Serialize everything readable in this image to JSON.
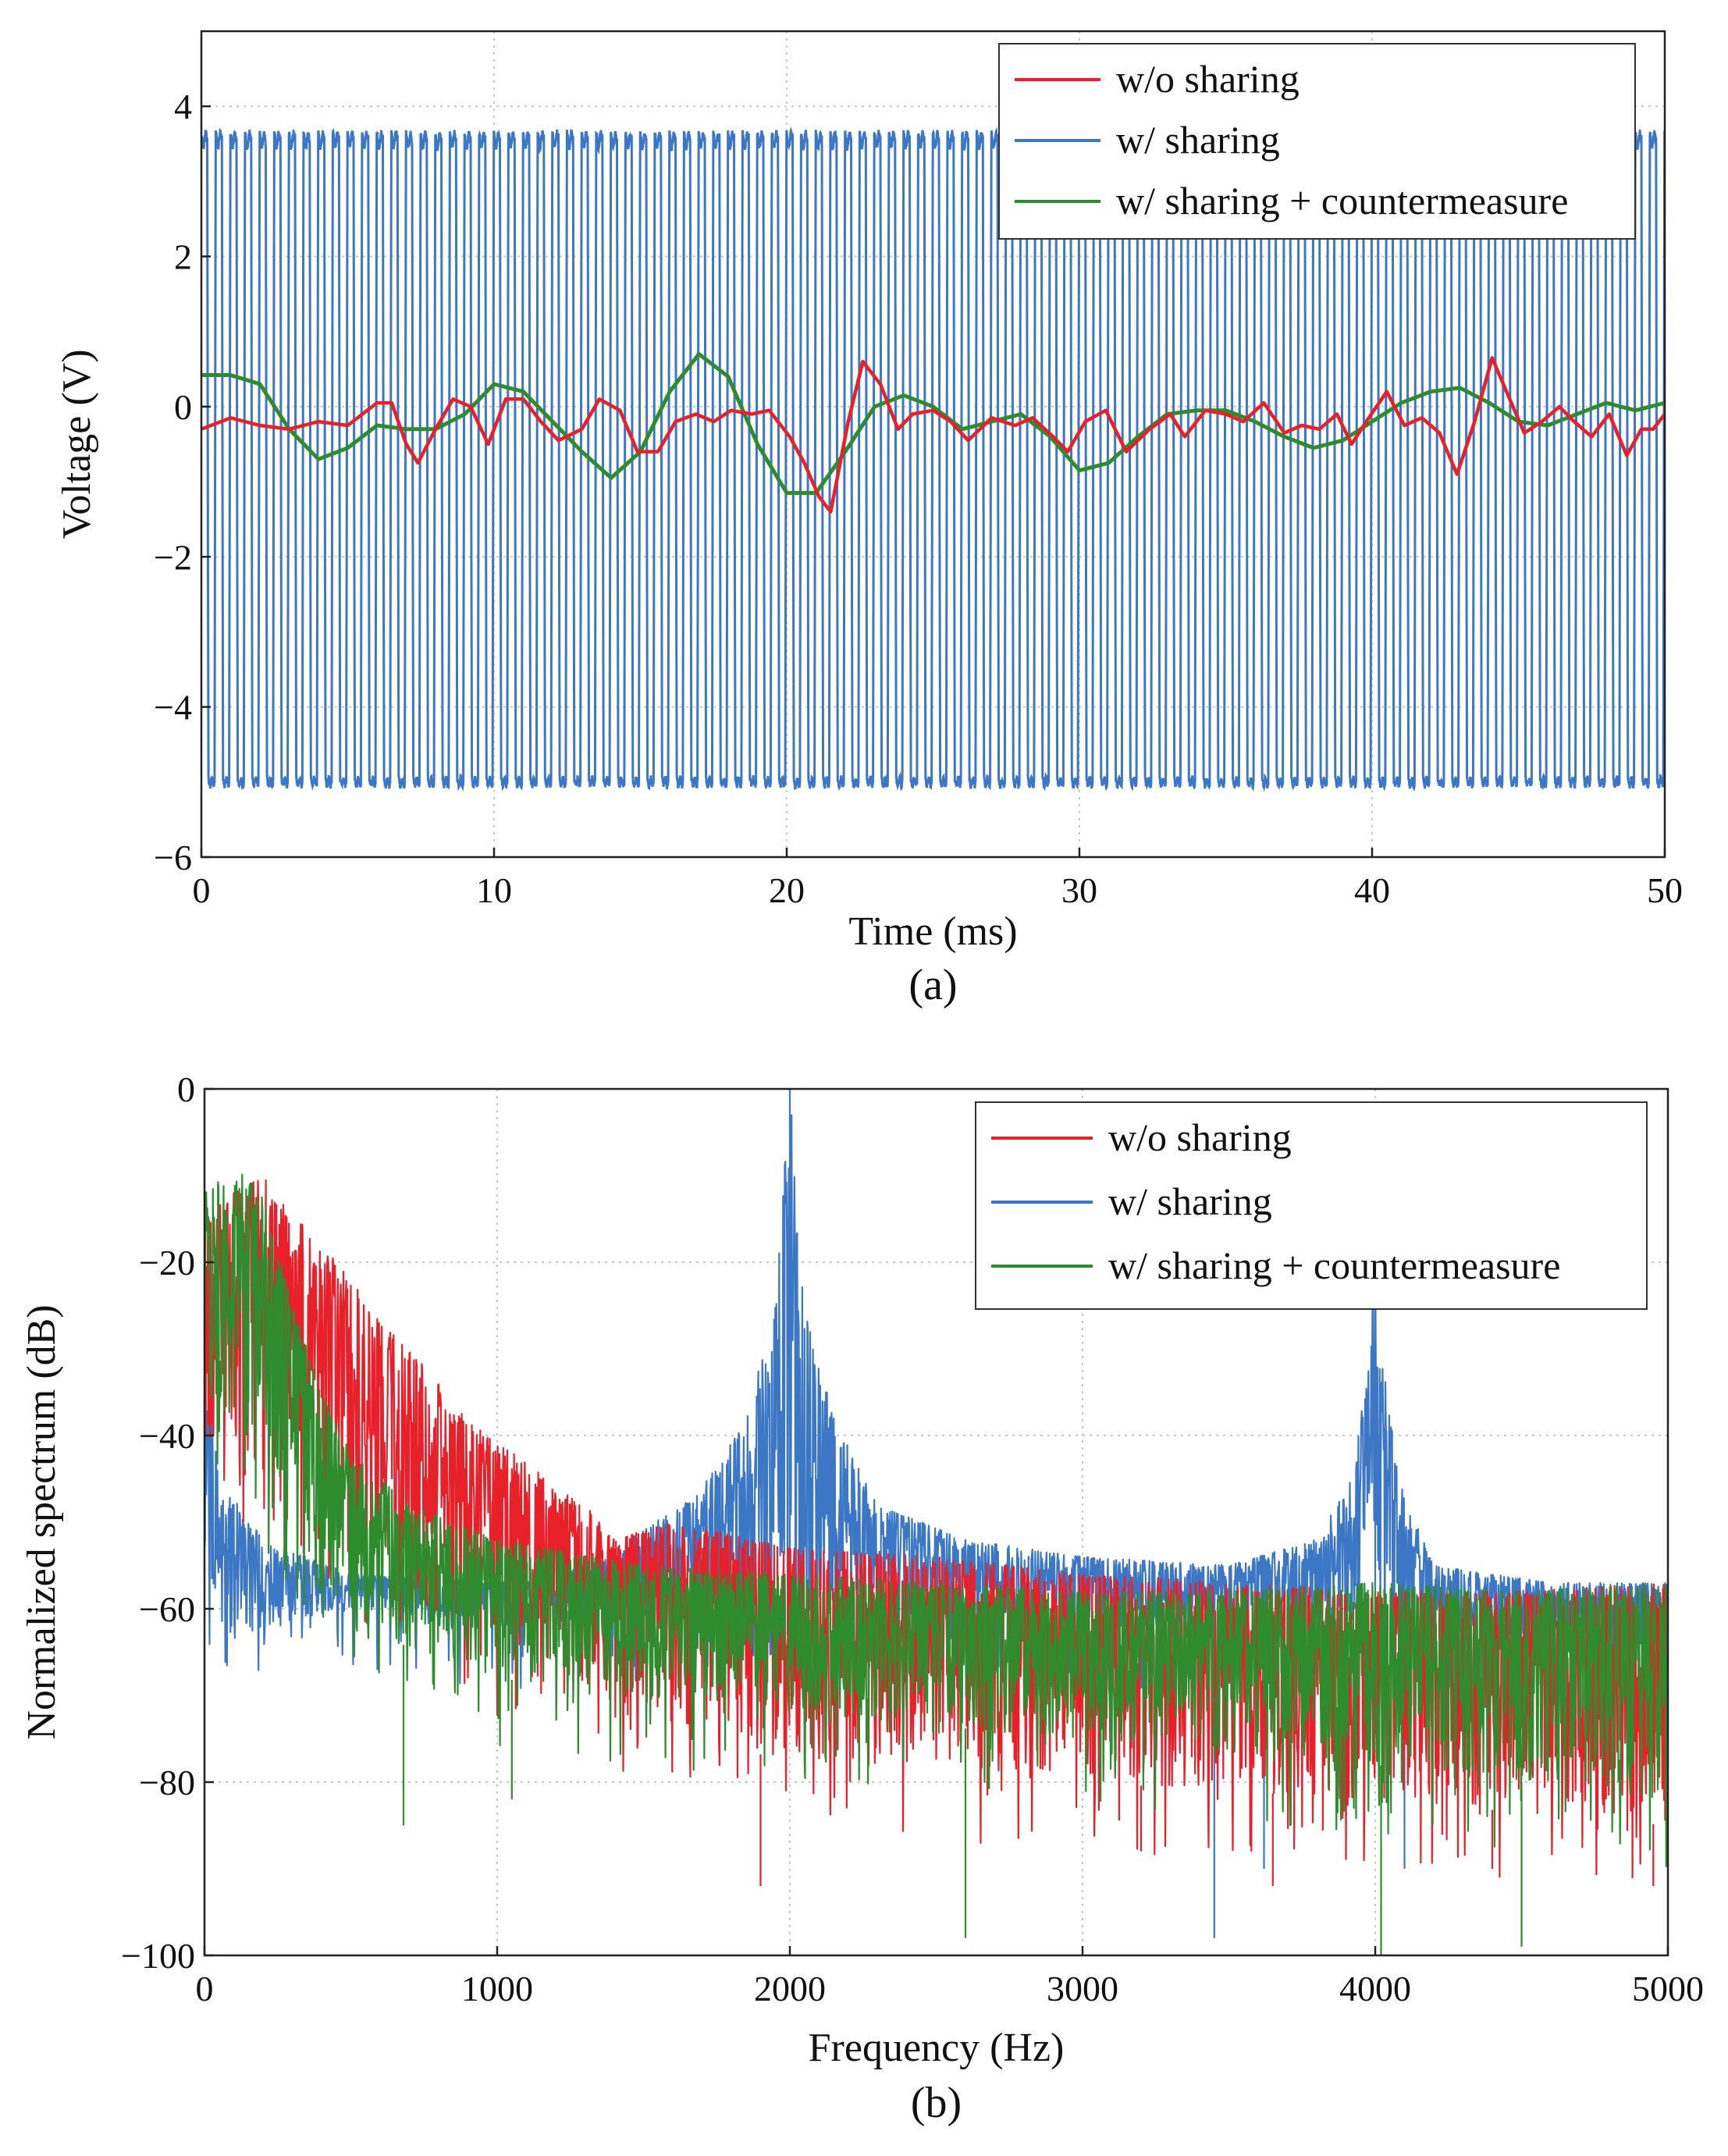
{
  "chart_data": [
    {
      "id": "a",
      "type": "line",
      "caption": "(a)",
      "xlabel": "Time (ms)",
      "ylabel": "Voltage (V)",
      "xlim": [
        0,
        50
      ],
      "ylim": [
        -6,
        5
      ],
      "xticks": [
        0,
        10,
        20,
        30,
        40,
        50
      ],
      "xtick_labels": [
        "0",
        "10",
        "20",
        "30",
        "40",
        "50"
      ],
      "yticks": [
        -6,
        -4,
        -2,
        0,
        2,
        4
      ],
      "ytick_labels": [
        "−6",
        "−4",
        "−2",
        "0",
        "2",
        "4"
      ],
      "grid": true,
      "legend_position": "top-right",
      "series": [
        {
          "name": "w/o sharing",
          "color": "#e8202a",
          "points": [
            [
              0,
              -0.3
            ],
            [
              1,
              -0.15
            ],
            [
              2,
              -0.25
            ],
            [
              3,
              -0.3
            ],
            [
              4,
              -0.2
            ],
            [
              5,
              -0.25
            ],
            [
              6,
              0.05
            ],
            [
              6.5,
              0.05
            ],
            [
              7,
              -0.5
            ],
            [
              7.4,
              -0.75
            ],
            [
              8,
              -0.3
            ],
            [
              8.6,
              0.1
            ],
            [
              9.2,
              0
            ],
            [
              9.8,
              -0.5
            ],
            [
              10.4,
              0.1
            ],
            [
              11,
              0.1
            ],
            [
              11.6,
              -0.2
            ],
            [
              12.2,
              -0.45
            ],
            [
              13,
              -0.3
            ],
            [
              13.6,
              0.1
            ],
            [
              14.3,
              -0.05
            ],
            [
              14.9,
              -0.6
            ],
            [
              15.6,
              -0.6
            ],
            [
              16.2,
              -0.2
            ],
            [
              16.9,
              -0.1
            ],
            [
              17.5,
              -0.2
            ],
            [
              18.1,
              -0.05
            ],
            [
              18.8,
              -0.1
            ],
            [
              19.4,
              -0.05
            ],
            [
              20.1,
              -0.4
            ],
            [
              20.6,
              -0.75
            ],
            [
              21.1,
              -1.2
            ],
            [
              21.5,
              -1.4
            ],
            [
              22.1,
              -0.2
            ],
            [
              22.6,
              0.6
            ],
            [
              23.2,
              0.3
            ],
            [
              23.8,
              -0.3
            ],
            [
              24.3,
              -0.1
            ],
            [
              25,
              -0.05
            ],
            [
              25.6,
              -0.2
            ],
            [
              26.2,
              -0.45
            ],
            [
              27,
              -0.15
            ],
            [
              27.8,
              -0.25
            ],
            [
              28.4,
              -0.15
            ],
            [
              29.1,
              -0.4
            ],
            [
              29.6,
              -0.6
            ],
            [
              30.2,
              -0.2
            ],
            [
              30.9,
              -0.05
            ],
            [
              31.6,
              -0.6
            ],
            [
              32.4,
              -0.3
            ],
            [
              33.1,
              -0.1
            ],
            [
              33.6,
              -0.4
            ],
            [
              34.3,
              -0.05
            ],
            [
              35,
              -0.1
            ],
            [
              35.6,
              -0.2
            ],
            [
              36.3,
              0.05
            ],
            [
              37,
              -0.35
            ],
            [
              37.6,
              -0.25
            ],
            [
              38.2,
              -0.3
            ],
            [
              38.8,
              -0.1
            ],
            [
              39.3,
              -0.5
            ],
            [
              39.8,
              -0.2
            ],
            [
              40.5,
              0.2
            ],
            [
              41.1,
              -0.25
            ],
            [
              41.7,
              -0.15
            ],
            [
              42.3,
              -0.35
            ],
            [
              42.9,
              -0.9
            ],
            [
              43.5,
              -0.2
            ],
            [
              44.1,
              0.65
            ],
            [
              44.7,
              0.1
            ],
            [
              45.2,
              -0.35
            ],
            [
              45.8,
              -0.2
            ],
            [
              46.4,
              0
            ],
            [
              46.9,
              -0.2
            ],
            [
              47.5,
              -0.4
            ],
            [
              48.1,
              -0.1
            ],
            [
              48.7,
              -0.65
            ],
            [
              49.2,
              -0.3
            ],
            [
              49.6,
              -0.3
            ],
            [
              50,
              -0.1
            ]
          ]
        },
        {
          "name": "w/ sharing",
          "color": "#3b77c4",
          "waveform": "square-like oscillation, ~2 kHz (period ~0.5 ms), high level ~3.6 V, low level ~-5.0 V",
          "frequency_hz": 2000,
          "high_v": 3.6,
          "low_v": -5.0
        },
        {
          "name": "w/ sharing + countermeasure",
          "color": "#2e8b2e",
          "points": [
            [
              0,
              0.42
            ],
            [
              1,
              0.42
            ],
            [
              2,
              0.3
            ],
            [
              3,
              -0.3
            ],
            [
              4,
              -0.7
            ],
            [
              5,
              -0.55
            ],
            [
              6,
              -0.25
            ],
            [
              7,
              -0.3
            ],
            [
              8,
              -0.3
            ],
            [
              9,
              -0.1
            ],
            [
              10,
              0.3
            ],
            [
              11,
              0.2
            ],
            [
              12,
              -0.2
            ],
            [
              13,
              -0.6
            ],
            [
              14,
              -0.95
            ],
            [
              15,
              -0.6
            ],
            [
              16,
              0.2
            ],
            [
              17,
              0.7
            ],
            [
              18,
              0.4
            ],
            [
              19,
              -0.5
            ],
            [
              20,
              -1.15
            ],
            [
              21,
              -1.15
            ],
            [
              22,
              -0.6
            ],
            [
              23,
              0
            ],
            [
              24,
              0.15
            ],
            [
              25,
              0
            ],
            [
              26,
              -0.3
            ],
            [
              27,
              -0.2
            ],
            [
              28,
              -0.1
            ],
            [
              29,
              -0.4
            ],
            [
              30,
              -0.85
            ],
            [
              31,
              -0.75
            ],
            [
              32,
              -0.4
            ],
            [
              33,
              -0.1
            ],
            [
              34,
              -0.05
            ],
            [
              35,
              -0.05
            ],
            [
              36,
              -0.2
            ],
            [
              37,
              -0.4
            ],
            [
              38,
              -0.55
            ],
            [
              39,
              -0.45
            ],
            [
              40,
              -0.2
            ],
            [
              41,
              0.05
            ],
            [
              42,
              0.2
            ],
            [
              43,
              0.25
            ],
            [
              44,
              0.05
            ],
            [
              45,
              -0.2
            ],
            [
              46,
              -0.25
            ],
            [
              47,
              -0.1
            ],
            [
              48,
              0.05
            ],
            [
              49,
              -0.05
            ],
            [
              50,
              0.05
            ]
          ]
        }
      ]
    },
    {
      "id": "b",
      "type": "line",
      "caption": "(b)",
      "xlabel": "Frequency (Hz)",
      "ylabel": "Normalized spectrum (dB)",
      "xlim": [
        0,
        5000
      ],
      "ylim": [
        -100,
        0
      ],
      "xticks": [
        0,
        1000,
        2000,
        3000,
        4000,
        5000
      ],
      "xtick_labels": [
        "0",
        "1000",
        "2000",
        "3000",
        "4000",
        "5000"
      ],
      "yticks": [
        -100,
        -80,
        -60,
        -40,
        -20,
        0
      ],
      "ytick_labels": [
        "−100",
        "−80",
        "−60",
        "−40",
        "−20",
        "0"
      ],
      "grid": true,
      "legend_position": "top-right",
      "series": [
        {
          "name": "w/o sharing",
          "color": "#e8202a",
          "envelope_upper": [
            [
              0,
              -15
            ],
            [
              100,
              -12
            ],
            [
              200,
              -10
            ],
            [
              300,
              -14
            ],
            [
              400,
              -18
            ],
            [
              500,
              -22
            ],
            [
              600,
              -27
            ],
            [
              700,
              -30
            ],
            [
              800,
              -34
            ],
            [
              900,
              -38
            ],
            [
              1000,
              -41
            ],
            [
              1100,
              -43
            ],
            [
              1200,
              -46
            ],
            [
              1300,
              -48
            ],
            [
              1400,
              -52
            ],
            [
              1600,
              -50
            ],
            [
              2000,
              -53
            ],
            [
              2500,
              -54
            ],
            [
              3000,
              -56
            ],
            [
              3500,
              -57
            ],
            [
              4000,
              -58
            ],
            [
              4500,
              -58
            ],
            [
              5000,
              -57
            ]
          ],
          "envelope_lower": [
            [
              0,
              -40
            ],
            [
              200,
              -45
            ],
            [
              500,
              -55
            ],
            [
              1000,
              -65
            ],
            [
              1500,
              -72
            ],
            [
              2000,
              -78
            ],
            [
              3000,
              -80
            ],
            [
              4000,
              -82
            ],
            [
              5000,
              -85
            ]
          ],
          "deep_minima": [
            [
              1900,
              -92
            ],
            [
              3200,
              -88
            ],
            [
              3650,
              -92
            ],
            [
              4400,
              -90
            ],
            [
              4950,
              -92
            ]
          ]
        },
        {
          "name": "w/ sharing",
          "color": "#3b77c4",
          "peaks": [
            [
              2000,
              0
            ],
            [
              4000,
              -17
            ]
          ],
          "envelope_upper": [
            [
              0,
              -30
            ],
            [
              50,
              -45
            ],
            [
              200,
              -52
            ],
            [
              500,
              -56
            ],
            [
              1000,
              -57
            ],
            [
              1300,
              -55
            ],
            [
              1500,
              -51
            ],
            [
              1700,
              -46
            ],
            [
              1850,
              -38
            ],
            [
              1950,
              -25
            ],
            [
              2000,
              0
            ],
            [
              2050,
              -25
            ],
            [
              2150,
              -38
            ],
            [
              2300,
              -48
            ],
            [
              2600,
              -52
            ],
            [
              3000,
              -54
            ],
            [
              3500,
              -55
            ],
            [
              3800,
              -52
            ],
            [
              3920,
              -45
            ],
            [
              3980,
              -30
            ],
            [
              4000,
              -17
            ],
            [
              4020,
              -30
            ],
            [
              4080,
              -45
            ],
            [
              4200,
              -55
            ],
            [
              4600,
              -57
            ],
            [
              5000,
              -57
            ]
          ],
          "envelope_lower": [
            [
              0,
              -57
            ],
            [
              50,
              -65
            ],
            [
              200,
              -62
            ],
            [
              500,
              -60
            ],
            [
              1000,
              -62
            ],
            [
              2000,
              -60
            ],
            [
              3000,
              -62
            ],
            [
              4000,
              -62
            ],
            [
              5000,
              -65
            ]
          ],
          "deep_minima": [
            [
              3450,
              -98
            ],
            [
              3620,
              -90
            ],
            [
              4100,
              -90
            ]
          ]
        },
        {
          "name": "w/ sharing + countermeasure",
          "color": "#2e8b2e",
          "envelope_upper": [
            [
              0,
              -12
            ],
            [
              100,
              -9
            ],
            [
              200,
              -12
            ],
            [
              300,
              -25
            ],
            [
              400,
              -35
            ],
            [
              500,
              -42
            ],
            [
              700,
              -48
            ],
            [
              1000,
              -52
            ],
            [
              1500,
              -55
            ],
            [
              2000,
              -56
            ],
            [
              2500,
              -57
            ],
            [
              3000,
              -58
            ],
            [
              3500,
              -58
            ],
            [
              4000,
              -57
            ],
            [
              4500,
              -58
            ],
            [
              5000,
              -57
            ]
          ],
          "envelope_lower": [
            [
              0,
              -35
            ],
            [
              200,
              -45
            ],
            [
              500,
              -62
            ],
            [
              1000,
              -68
            ],
            [
              2000,
              -72
            ],
            [
              3000,
              -75
            ],
            [
              4000,
              -78
            ],
            [
              5000,
              -82
            ]
          ],
          "deep_minima": [
            [
              680,
              -85
            ],
            [
              1050,
              -82
            ],
            [
              2600,
              -98
            ],
            [
              4500,
              -99
            ],
            [
              4020,
              -100
            ]
          ]
        }
      ]
    }
  ]
}
